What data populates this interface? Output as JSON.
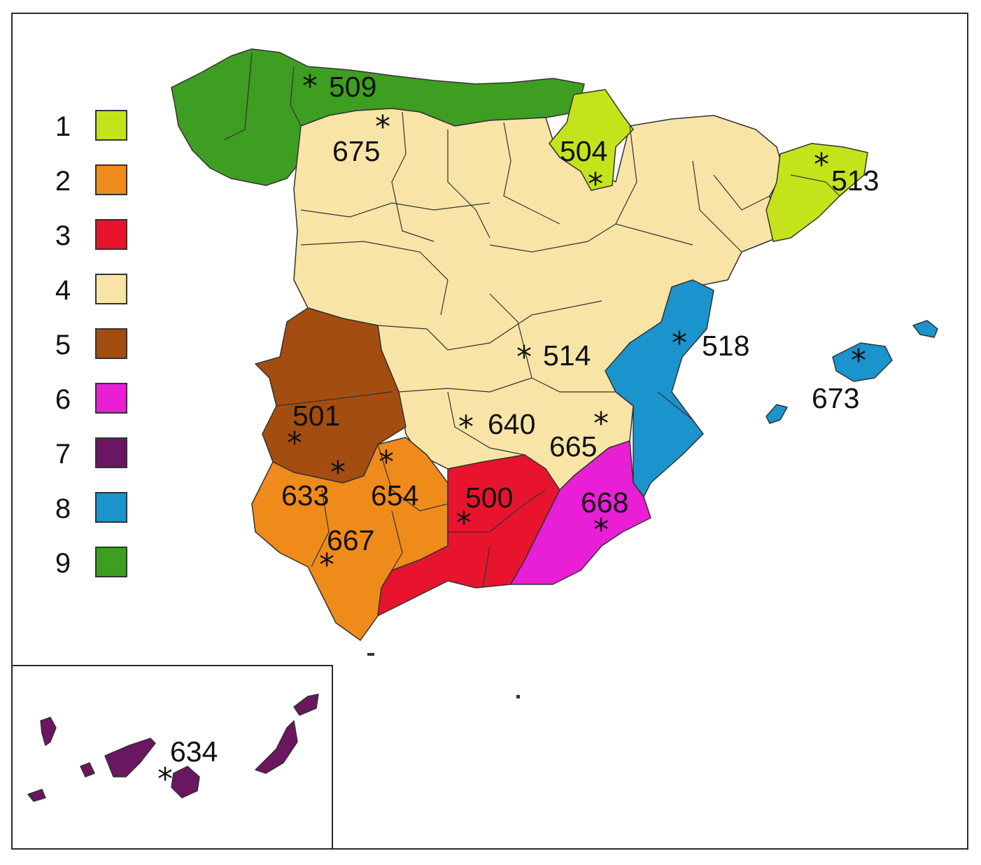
{
  "legend": [
    {
      "number": "1",
      "color": "#c5e31b"
    },
    {
      "number": "2",
      "color": "#ef8b1a"
    },
    {
      "number": "3",
      "color": "#e8142e"
    },
    {
      "number": "4",
      "color": "#f8e4a6"
    },
    {
      "number": "5",
      "color": "#a44d10"
    },
    {
      "number": "6",
      "color": "#e81fd4"
    },
    {
      "number": "7",
      "color": "#6a1660"
    },
    {
      "number": "8",
      "color": "#1b93cc"
    },
    {
      "number": "9",
      "color": "#3e9e22"
    }
  ],
  "sites": [
    {
      "label": "509",
      "group": 9
    },
    {
      "label": "675",
      "group": 4
    },
    {
      "label": "504",
      "group": 1
    },
    {
      "label": "513",
      "group": 1
    },
    {
      "label": "514",
      "group": 4
    },
    {
      "label": "518",
      "group": 8
    },
    {
      "label": "673",
      "group": 8
    },
    {
      "label": "501",
      "group": 5
    },
    {
      "label": "640",
      "group": 4
    },
    {
      "label": "665",
      "group": 4
    },
    {
      "label": "633",
      "group": 2
    },
    {
      "label": "654",
      "group": 2
    },
    {
      "label": "500",
      "group": 3
    },
    {
      "label": "668",
      "group": 6
    },
    {
      "label": "667",
      "group": 2
    },
    {
      "label": "634",
      "group": 7
    }
  ]
}
